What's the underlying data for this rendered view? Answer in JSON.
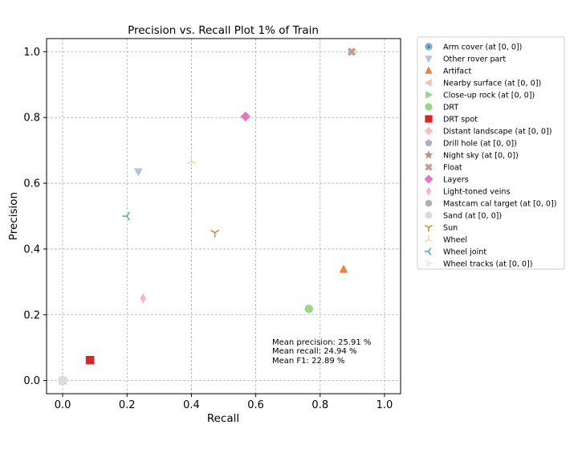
{
  "chart_data": {
    "type": "scatter",
    "title": "Precision vs. Recall Plot 1% of Train",
    "xlabel": "Recall",
    "ylabel": "Precision",
    "xlim": [
      -0.05,
      1.05
    ],
    "ylim": [
      -0.04,
      1.04
    ],
    "xticks": [
      0.0,
      0.2,
      0.4,
      0.6,
      0.8,
      1.0
    ],
    "yticks": [
      0.0,
      0.2,
      0.4,
      0.6,
      0.8,
      1.0
    ],
    "xtick_labels": [
      "0.0",
      "0.2",
      "0.4",
      "0.6",
      "0.8",
      "1.0"
    ],
    "ytick_labels": [
      "0.0",
      "0.2",
      "0.4",
      "0.6",
      "0.8",
      "1.0"
    ],
    "grid": true,
    "legend_position": "outside-right",
    "series": [
      {
        "name": "Arm cover (at [0, 0])",
        "marker": "circle-dot",
        "color": "#7eb0d0",
        "x": 0.0,
        "y": 0.0
      },
      {
        "name": "Other rover part",
        "marker": "triangle-down",
        "color": "#b0c4de",
        "x": 0.235,
        "y": 0.635
      },
      {
        "name": "Artifact",
        "marker": "triangle-up",
        "color": "#f08040",
        "x": 0.873,
        "y": 0.338
      },
      {
        "name": "Nearby surface (at [0, 0])",
        "marker": "triangle-left",
        "color": "#f8c0b0",
        "x": 0.0,
        "y": 0.0
      },
      {
        "name": "Close-up rock (at [0, 0])",
        "marker": "triangle-right",
        "color": "#90d890",
        "x": 0.0,
        "y": 0.0
      },
      {
        "name": "DRT",
        "marker": "circle",
        "color": "#98d888",
        "x": 0.765,
        "y": 0.218
      },
      {
        "name": "DRT spot",
        "marker": "square",
        "color": "#d62728",
        "x": 0.085,
        "y": 0.062
      },
      {
        "name": "Distant landscape (at [0, 0])",
        "marker": "plus-filled",
        "color": "#f8b8b8",
        "x": 0.0,
        "y": 0.0
      },
      {
        "name": "Drill hole (at [0, 0])",
        "marker": "pentagon",
        "color": "#b0a8cc",
        "x": 0.0,
        "y": 0.0
      },
      {
        "name": "Night sky (at [0, 0])",
        "marker": "star",
        "color": "#b89090",
        "x": 0.0,
        "y": 0.0
      },
      {
        "name": "Float",
        "marker": "x-filled",
        "color": "#c49c94",
        "x": 0.898,
        "y": 1.0
      },
      {
        "name": "Layers",
        "marker": "diamond",
        "color": "#e377c2",
        "x": 0.568,
        "y": 0.803
      },
      {
        "name": "Light-toned veins",
        "marker": "thin-diamond",
        "color": "#f7b6d2",
        "x": 0.25,
        "y": 0.25
      },
      {
        "name": "Mastcam cal target (at [0, 0])",
        "marker": "hexagon",
        "color": "#b0b0b0",
        "x": 0.0,
        "y": 0.0
      },
      {
        "name": "Sand (at [0, 0])",
        "marker": "octagon",
        "color": "#dcdcdc",
        "x": 0.0,
        "y": 0.0
      },
      {
        "name": "Sun",
        "marker": "tri-down",
        "color": "#bc8a2a",
        "x": 0.473,
        "y": 0.45
      },
      {
        "name": "Wheel",
        "marker": "tri-up",
        "color": "#e8d8a0",
        "x": 0.4,
        "y": 0.667
      },
      {
        "name": "Wheel joint",
        "marker": "tri-left",
        "color": "#3aa8b8",
        "x": 0.2,
        "y": 0.5
      },
      {
        "name": "Wheel tracks (at [0, 0])",
        "marker": "tri-right",
        "color": "#cce8ee",
        "x": 0.0,
        "y": 0.0
      }
    ],
    "annotations": [
      "Mean precision: 25.91 %",
      "Mean recall: 24.94 %",
      "Mean F1: 22.89 %"
    ]
  }
}
